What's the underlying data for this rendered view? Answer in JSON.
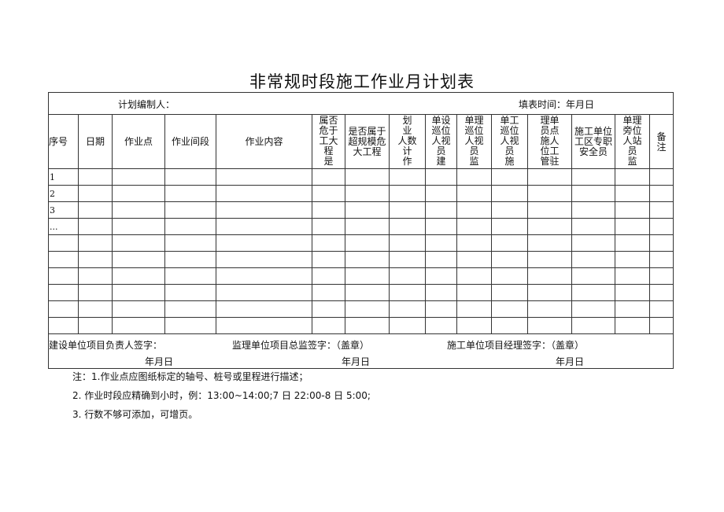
{
  "title": "非常规时段施工作业月计划表",
  "info": {
    "planner_label": "计划编制人：",
    "date_label": "填表时间：年月日"
  },
  "columns": [
    "序号",
    "日期",
    "作业点",
    "作业间段",
    "作业内容",
    "属否\n危于\n工大\n  程\n  是",
    "是否属于\n超规模危\n大工程",
    "划\n业\n人数\n计\n作",
    "单设\n巡位\n人视\n  员\n  建",
    "单理\n巡位\n人视\n  员\n  监",
    "单工\n巡位\n人视\n  员\n  施",
    "理单\n员点\n施人\n位工\n管驻",
    "施工单位\n工区专职\n安全员",
    "单理\n旁位\n人站\n  员\n  监",
    "备\n注"
  ],
  "rows": [
    "1",
    "2",
    "3",
    "...",
    "",
    "",
    "",
    "",
    "",
    ""
  ],
  "footer": {
    "owner_sign": "建设单位项目负责人签字：",
    "supervisor_sign": "监理单位项目总监签字：（盖章）",
    "contractor_sign": "施工单位项目经理签字：（盖章）",
    "date1": "年月日",
    "date2": "年月日",
    "date3": "年月日"
  },
  "notes": [
    "注：1.作业点应图纸标定的轴号、桩号或里程进行描述；",
    "2. 作业时段应精确到小时，例：13:00~14:00;7 日 22:00-8 日 5:00;",
    "3. 行数不够可添加，可增页。"
  ]
}
